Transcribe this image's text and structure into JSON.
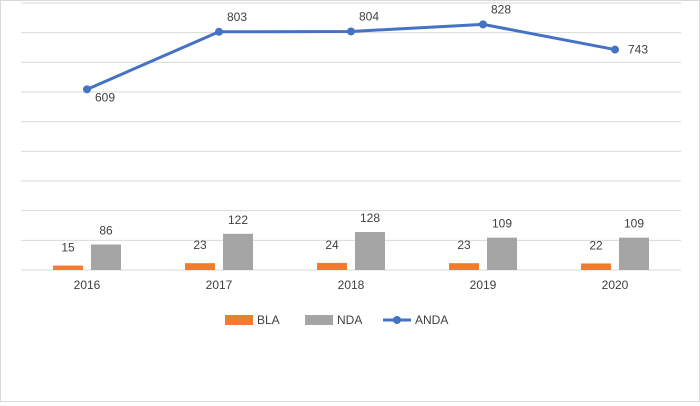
{
  "chart_data": {
    "type": "bar",
    "categories": [
      "2016",
      "2017",
      "2018",
      "2019",
      "2020"
    ],
    "series": [
      {
        "name": "BLA",
        "kind": "bar",
        "values": [
          15,
          23,
          24,
          23,
          22
        ],
        "color": "#ED7D31"
      },
      {
        "name": "NDA",
        "kind": "bar",
        "values": [
          86,
          122,
          128,
          109,
          109
        ],
        "color": "#A5A5A5"
      },
      {
        "name": "ANDA",
        "kind": "line",
        "values": [
          609,
          803,
          804,
          828,
          743
        ],
        "color": "#4472C4"
      }
    ],
    "ylim": [
      0,
      900
    ],
    "grid": true,
    "legend": "bottom"
  }
}
